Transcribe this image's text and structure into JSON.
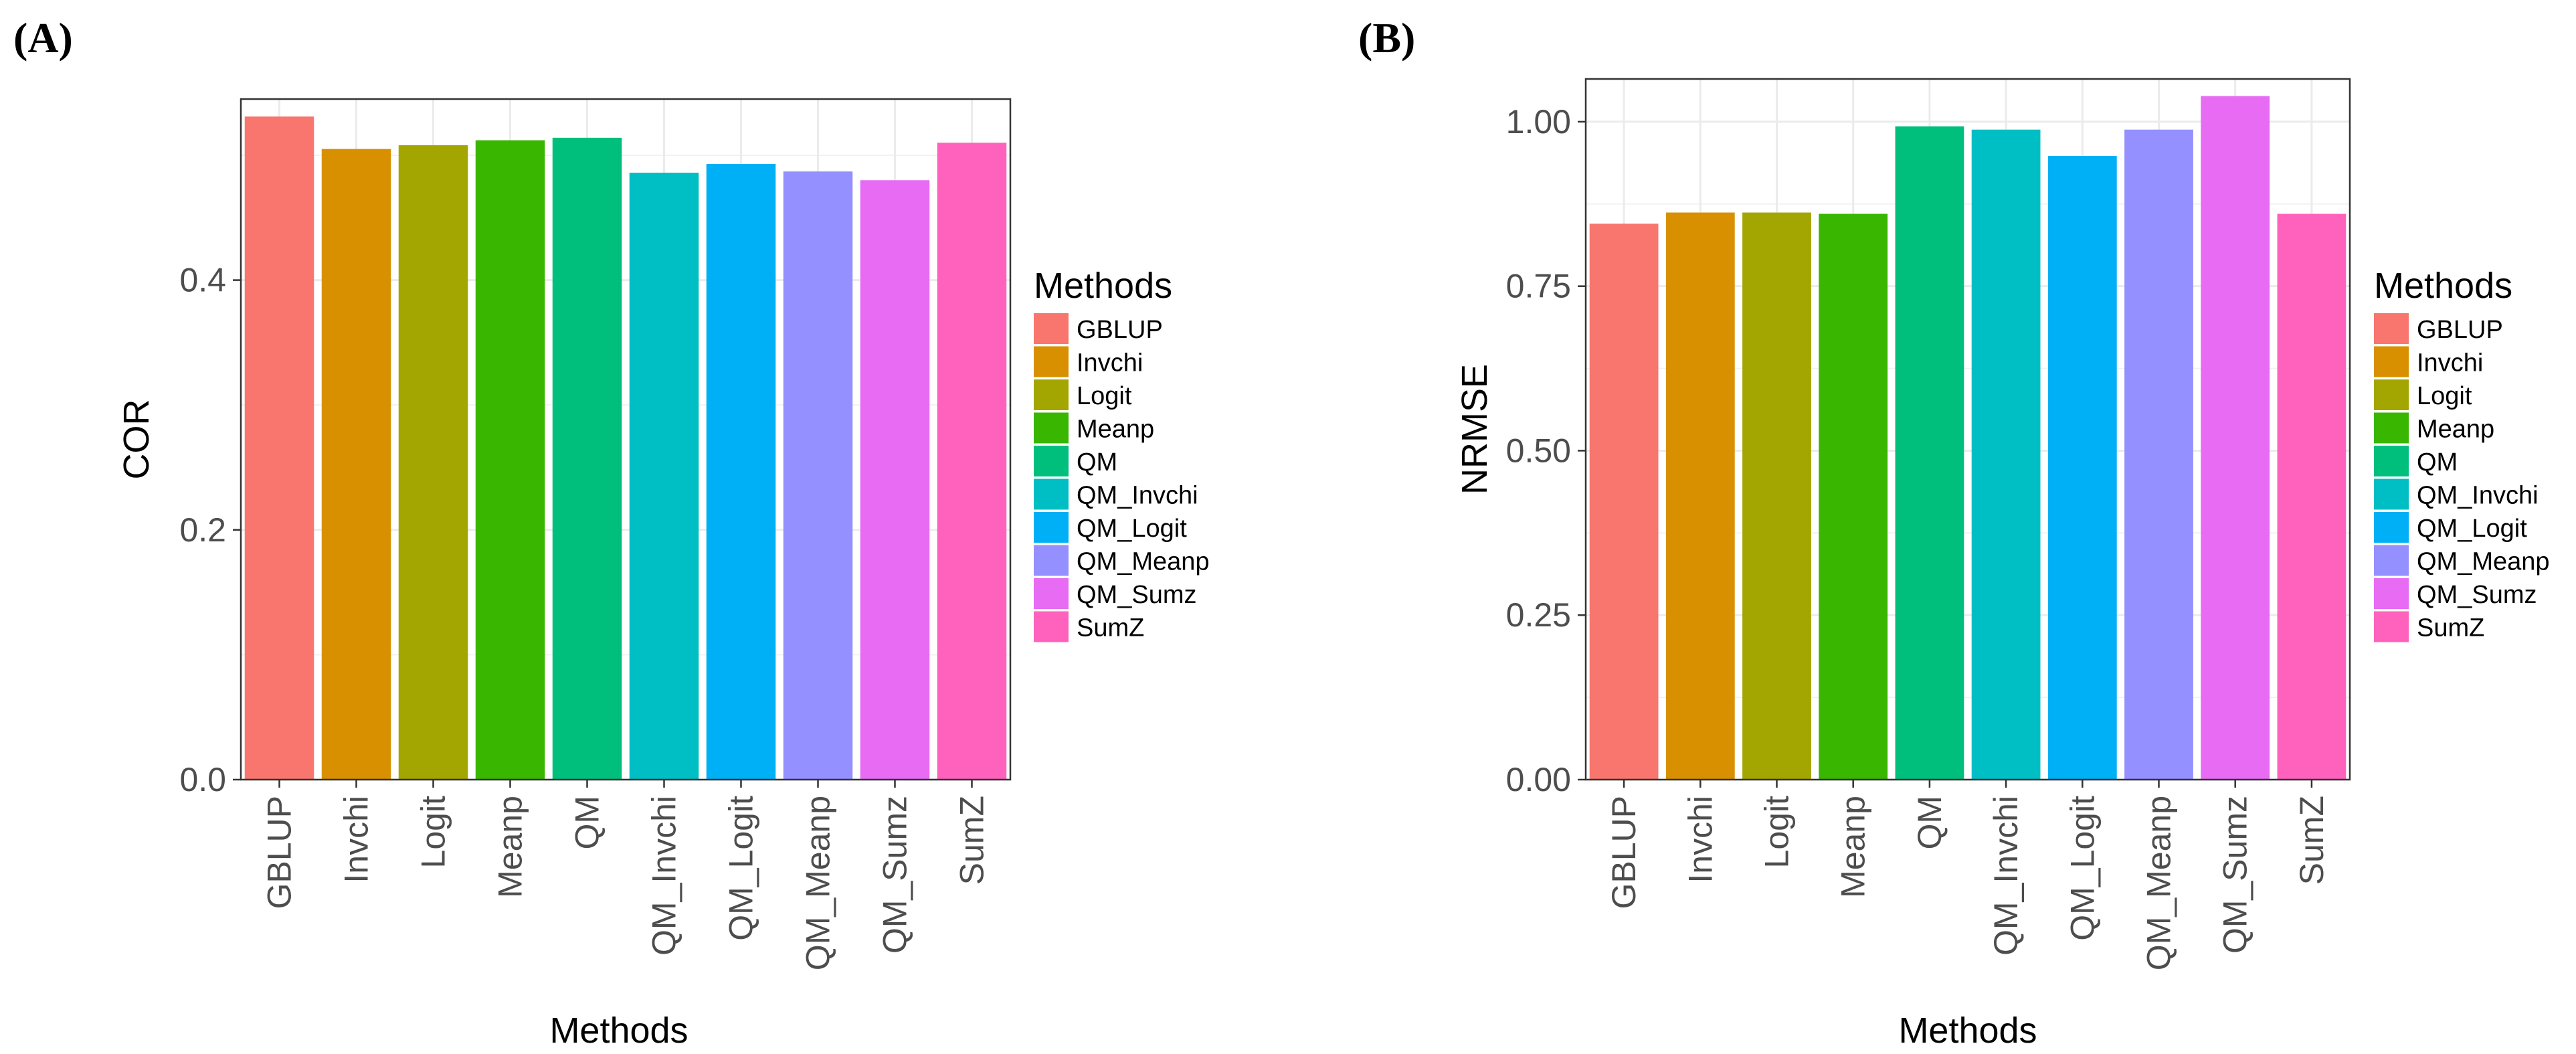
{
  "chart_data": [
    {
      "panel_label": "(A)",
      "type": "bar",
      "title": "",
      "xlabel": "Methods",
      "ylabel": "COR",
      "ylim": [
        0,
        0.545
      ],
      "yticks": [
        0.0,
        0.2,
        0.4
      ],
      "ytick_labels": [
        "0.0",
        "0.2",
        "0.4"
      ],
      "grid": true,
      "legend_title": "Methods",
      "legend_position": "right",
      "categories": [
        "GBLUP",
        "Invchi",
        "Logit",
        "Meanp",
        "QM",
        "QM_Invchi",
        "QM_Logit",
        "QM_Meanp",
        "QM_Sumz",
        "SumZ"
      ],
      "values": [
        0.531,
        0.505,
        0.508,
        0.512,
        0.514,
        0.486,
        0.493,
        0.487,
        0.48,
        0.51
      ],
      "colors": [
        "#F8766D",
        "#D89000",
        "#A3A500",
        "#39B600",
        "#00BF7D",
        "#00BFC4",
        "#00B0F6",
        "#9590FF",
        "#E76BF3",
        "#FF62BC"
      ]
    },
    {
      "panel_label": "(B)",
      "type": "bar",
      "title": "",
      "xlabel": "Methods",
      "ylabel": "NRMSE",
      "ylim": [
        0,
        1.065
      ],
      "yticks": [
        0.0,
        0.25,
        0.5,
        0.75,
        1.0
      ],
      "ytick_labels": [
        "0.00",
        "0.25",
        "0.50",
        "0.75",
        "1.00"
      ],
      "grid": true,
      "legend_title": "Methods",
      "legend_position": "right",
      "categories": [
        "GBLUP",
        "Invchi",
        "Logit",
        "Meanp",
        "QM",
        "QM_Invchi",
        "QM_Logit",
        "QM_Meanp",
        "QM_Sumz",
        "SumZ"
      ],
      "values": [
        0.845,
        0.862,
        0.862,
        0.86,
        0.993,
        0.988,
        0.948,
        0.988,
        1.039,
        0.86
      ],
      "colors": [
        "#F8766D",
        "#D89000",
        "#A3A500",
        "#39B600",
        "#00BF7D",
        "#00BFC4",
        "#00B0F6",
        "#9590FF",
        "#E76BF3",
        "#FF62BC"
      ]
    }
  ]
}
